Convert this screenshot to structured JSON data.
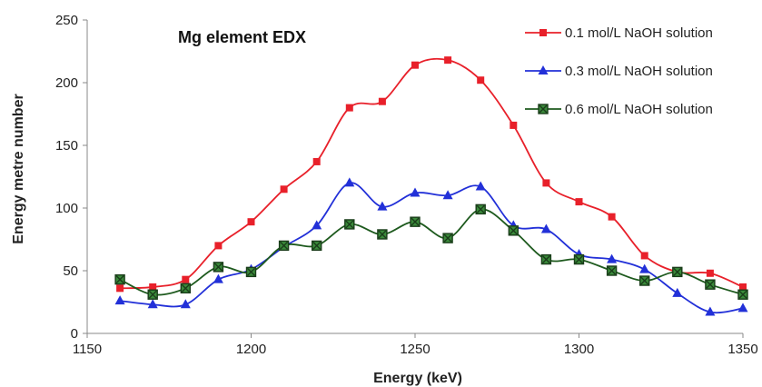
{
  "chart_data": {
    "type": "line",
    "title": "Mg element EDX",
    "xlabel": "Energy (keV)",
    "ylabel": "Energy metre number",
    "xlim": [
      1150,
      1350
    ],
    "ylim": [
      0,
      250
    ],
    "x_ticks": [
      1150,
      1200,
      1250,
      1300,
      1350
    ],
    "y_ticks": [
      0,
      50,
      100,
      150,
      200,
      250
    ],
    "grid": false,
    "legend_position": "top-right",
    "x": [
      1160,
      1170,
      1180,
      1190,
      1200,
      1210,
      1220,
      1230,
      1240,
      1250,
      1260,
      1270,
      1280,
      1290,
      1300,
      1310,
      1320,
      1330,
      1340,
      1350
    ],
    "series": [
      {
        "name": "0.1 mol/L NaOH solution",
        "color": "#e8202a",
        "marker": "square",
        "values": [
          36,
          37,
          43,
          70,
          89,
          115,
          137,
          180,
          185,
          214,
          218,
          202,
          166,
          120,
          105,
          93,
          62,
          49,
          48,
          37
        ]
      },
      {
        "name": "0.3 mol/L NaOH solution",
        "color": "#2230d8",
        "marker": "triangle",
        "values": [
          26,
          23,
          23,
          43,
          51,
          69,
          86,
          120,
          101,
          112,
          110,
          117,
          86,
          83,
          63,
          59,
          51,
          32,
          17,
          20
        ]
      },
      {
        "name": "0.6 mol/L NaOH solution",
        "color": "#1e5a1e",
        "marker": "square-x",
        "values": [
          43,
          31,
          36,
          53,
          49,
          70,
          70,
          87,
          79,
          89,
          76,
          99,
          82,
          59,
          59,
          50,
          42,
          49,
          39,
          31
        ]
      }
    ]
  }
}
